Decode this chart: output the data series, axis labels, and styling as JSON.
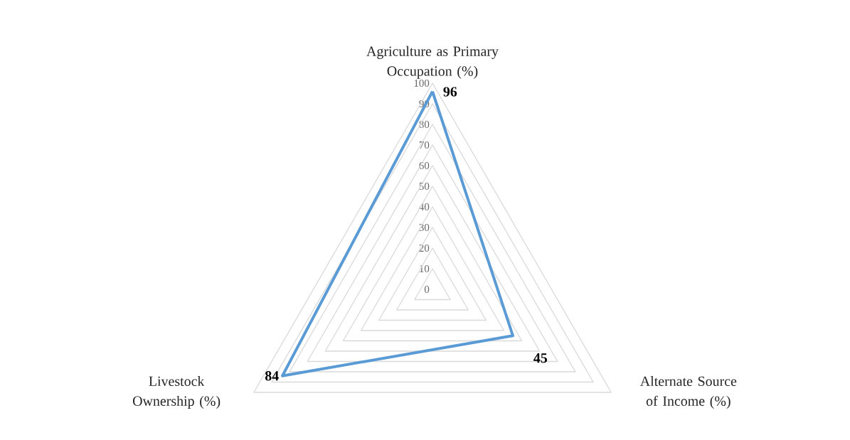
{
  "chart_data": {
    "type": "radar",
    "categories": [
      "Agriculture as Primary Occupation (%)",
      "Alternate Source of Income (%)",
      "Livestock Ownership (%)"
    ],
    "series": [
      {
        "color": "#5b9bd5",
        "values": [
          96,
          45,
          84
        ]
      }
    ],
    "ylim": [
      0,
      100
    ],
    "yticks": [
      0,
      10,
      20,
      30,
      40,
      50,
      60,
      70,
      80,
      90,
      100
    ],
    "grid": true,
    "data_labels": true
  }
}
